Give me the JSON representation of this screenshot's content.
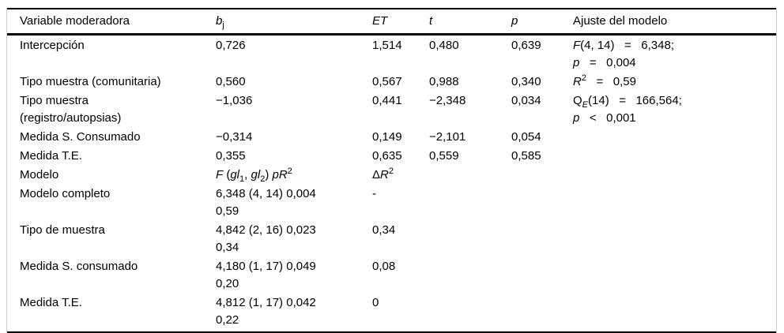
{
  "table": {
    "header": {
      "variable": "Variable moderadora",
      "b": "<i>b</i><sub>j</sub>",
      "et": "<i>ET</i>",
      "t": "<i>t</i>",
      "p": "<i>p</i>",
      "ajuste": "Ajuste del modelo"
    },
    "rows": [
      {
        "variable": "Intercepción",
        "b": "0,726",
        "et": "1,514",
        "t": "0,480",
        "p": "0,639",
        "ajuste": "<i>F</i>(4, 14)   =   6,348;<br><i>p</i>   =   0,004"
      },
      {
        "variable": "Tipo muestra (comunitaria)",
        "b": "0,560",
        "et": "0,567",
        "t": "0,988",
        "p": "0,340",
        "ajuste": "<i>R</i><sup>2</sup>   =   0,59"
      },
      {
        "variable": "Tipo muestra<br>(registro/autopsias)",
        "b": "−1,036",
        "et": "0,441",
        "t": "−2,348",
        "p": "0,034",
        "ajuste": "Q<sub><i>E</i></sub>(14)   =   166,564;<br><i>p</i>   &lt;   0,001"
      },
      {
        "variable": "Medida S. Consumado",
        "b": "−0,314",
        "et": "0,149",
        "t": "−2,101",
        "p": "0,054",
        "ajuste": ""
      },
      {
        "variable": "Medida T.E.",
        "b": "0,355",
        "et": "0,635",
        "t": "0,559",
        "p": "0,585",
        "ajuste": ""
      },
      {
        "variable": "Modelo",
        "b": "<i>F</i> (<i>gl</i><sub>1</sub>, <i>gl</i><sub>2</sub>) <i>pR</i><sup>2</sup>",
        "et": "Δ<i>R</i><sup>2</sup>",
        "t": "",
        "p": "",
        "ajuste": ""
      },
      {
        "variable": "Modelo completo",
        "b": "6,348 (4, 14) 0,004<br>0,59",
        "et": "-",
        "t": "",
        "p": "",
        "ajuste": ""
      },
      {
        "variable": "Tipo de muestra",
        "b": "4,842 (2, 16) 0,023<br>0,34",
        "et": "0,34",
        "t": "",
        "p": "",
        "ajuste": ""
      },
      {
        "variable": "Medida S. consumado",
        "b": "4,180 (1, 17) 0,049<br>0,20",
        "et": "0,08",
        "t": "",
        "p": "",
        "ajuste": ""
      },
      {
        "variable": "Medida T.E.",
        "b": "4,812 (1, 17) 0,042<br>0,22",
        "et": "0",
        "t": "",
        "p": "",
        "ajuste": ""
      }
    ]
  }
}
